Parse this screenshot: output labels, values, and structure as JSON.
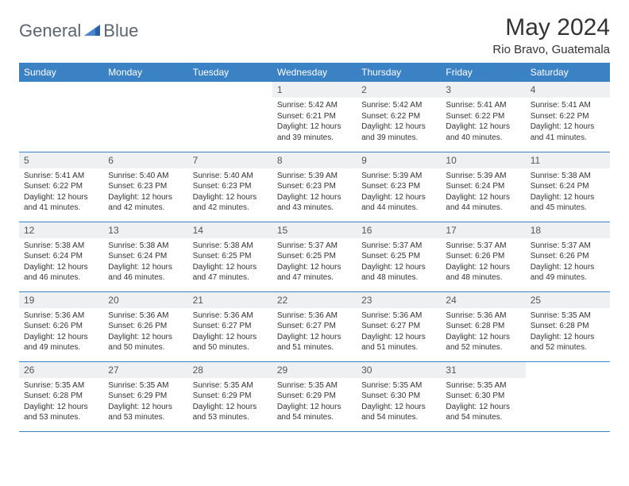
{
  "brand": {
    "part1": "General",
    "part2": "Blue"
  },
  "title": "May 2024",
  "location": "Rio Bravo, Guatemala",
  "colors": {
    "header_bg": "#3b82c4",
    "header_text": "#ffffff",
    "daynum_bg": "#eef0f2",
    "row_border": "#3b82c4",
    "logo_accent": "#4472c4",
    "body_text": "#333333",
    "page_bg": "#ffffff"
  },
  "typography": {
    "title_fontsize": 30,
    "location_fontsize": 15,
    "header_fontsize": 12,
    "daynum_fontsize": 12,
    "body_fontsize": 10
  },
  "layout": {
    "columns": 7,
    "rows": 5,
    "first_day_column_index": 3
  },
  "weekdays": [
    "Sunday",
    "Monday",
    "Tuesday",
    "Wednesday",
    "Thursday",
    "Friday",
    "Saturday"
  ],
  "days": [
    {
      "n": 1,
      "sr": "5:42 AM",
      "ss": "6:21 PM",
      "dl": "12 hours and 39 minutes."
    },
    {
      "n": 2,
      "sr": "5:42 AM",
      "ss": "6:22 PM",
      "dl": "12 hours and 39 minutes."
    },
    {
      "n": 3,
      "sr": "5:41 AM",
      "ss": "6:22 PM",
      "dl": "12 hours and 40 minutes."
    },
    {
      "n": 4,
      "sr": "5:41 AM",
      "ss": "6:22 PM",
      "dl": "12 hours and 41 minutes."
    },
    {
      "n": 5,
      "sr": "5:41 AM",
      "ss": "6:22 PM",
      "dl": "12 hours and 41 minutes."
    },
    {
      "n": 6,
      "sr": "5:40 AM",
      "ss": "6:23 PM",
      "dl": "12 hours and 42 minutes."
    },
    {
      "n": 7,
      "sr": "5:40 AM",
      "ss": "6:23 PM",
      "dl": "12 hours and 42 minutes."
    },
    {
      "n": 8,
      "sr": "5:39 AM",
      "ss": "6:23 PM",
      "dl": "12 hours and 43 minutes."
    },
    {
      "n": 9,
      "sr": "5:39 AM",
      "ss": "6:23 PM",
      "dl": "12 hours and 44 minutes."
    },
    {
      "n": 10,
      "sr": "5:39 AM",
      "ss": "6:24 PM",
      "dl": "12 hours and 44 minutes."
    },
    {
      "n": 11,
      "sr": "5:38 AM",
      "ss": "6:24 PM",
      "dl": "12 hours and 45 minutes."
    },
    {
      "n": 12,
      "sr": "5:38 AM",
      "ss": "6:24 PM",
      "dl": "12 hours and 46 minutes."
    },
    {
      "n": 13,
      "sr": "5:38 AM",
      "ss": "6:24 PM",
      "dl": "12 hours and 46 minutes."
    },
    {
      "n": 14,
      "sr": "5:38 AM",
      "ss": "6:25 PM",
      "dl": "12 hours and 47 minutes."
    },
    {
      "n": 15,
      "sr": "5:37 AM",
      "ss": "6:25 PM",
      "dl": "12 hours and 47 minutes."
    },
    {
      "n": 16,
      "sr": "5:37 AM",
      "ss": "6:25 PM",
      "dl": "12 hours and 48 minutes."
    },
    {
      "n": 17,
      "sr": "5:37 AM",
      "ss": "6:26 PM",
      "dl": "12 hours and 48 minutes."
    },
    {
      "n": 18,
      "sr": "5:37 AM",
      "ss": "6:26 PM",
      "dl": "12 hours and 49 minutes."
    },
    {
      "n": 19,
      "sr": "5:36 AM",
      "ss": "6:26 PM",
      "dl": "12 hours and 49 minutes."
    },
    {
      "n": 20,
      "sr": "5:36 AM",
      "ss": "6:26 PM",
      "dl": "12 hours and 50 minutes."
    },
    {
      "n": 21,
      "sr": "5:36 AM",
      "ss": "6:27 PM",
      "dl": "12 hours and 50 minutes."
    },
    {
      "n": 22,
      "sr": "5:36 AM",
      "ss": "6:27 PM",
      "dl": "12 hours and 51 minutes."
    },
    {
      "n": 23,
      "sr": "5:36 AM",
      "ss": "6:27 PM",
      "dl": "12 hours and 51 minutes."
    },
    {
      "n": 24,
      "sr": "5:36 AM",
      "ss": "6:28 PM",
      "dl": "12 hours and 52 minutes."
    },
    {
      "n": 25,
      "sr": "5:35 AM",
      "ss": "6:28 PM",
      "dl": "12 hours and 52 minutes."
    },
    {
      "n": 26,
      "sr": "5:35 AM",
      "ss": "6:28 PM",
      "dl": "12 hours and 53 minutes."
    },
    {
      "n": 27,
      "sr": "5:35 AM",
      "ss": "6:29 PM",
      "dl": "12 hours and 53 minutes."
    },
    {
      "n": 28,
      "sr": "5:35 AM",
      "ss": "6:29 PM",
      "dl": "12 hours and 53 minutes."
    },
    {
      "n": 29,
      "sr": "5:35 AM",
      "ss": "6:29 PM",
      "dl": "12 hours and 54 minutes."
    },
    {
      "n": 30,
      "sr": "5:35 AM",
      "ss": "6:30 PM",
      "dl": "12 hours and 54 minutes."
    },
    {
      "n": 31,
      "sr": "5:35 AM",
      "ss": "6:30 PM",
      "dl": "12 hours and 54 minutes."
    }
  ],
  "labels": {
    "sunrise": "Sunrise:",
    "sunset": "Sunset:",
    "daylight": "Daylight:"
  }
}
